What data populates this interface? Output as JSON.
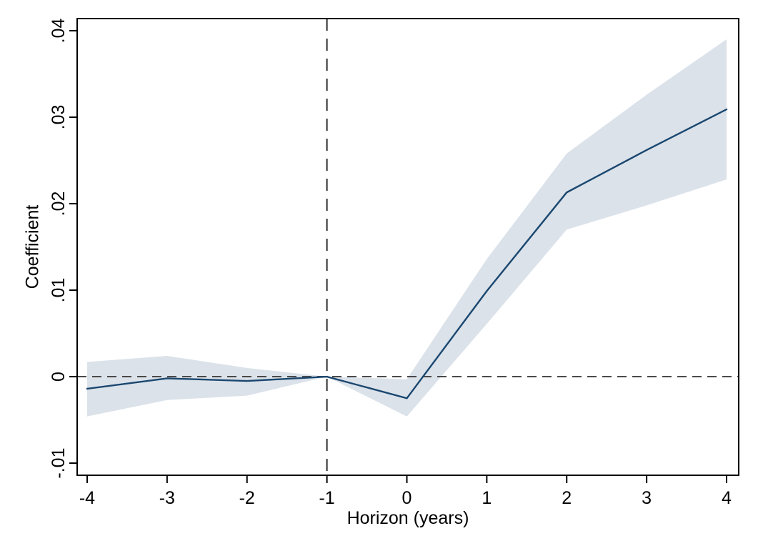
{
  "figure": {
    "background": "#ffffff",
    "border_color": "#000000",
    "text_color": "#000000"
  },
  "chart_data": {
    "type": "line",
    "title": "",
    "xlabel": "Horizon (years)",
    "ylabel": "Coefficient",
    "x": [
      -4,
      -3,
      -2,
      -1,
      0,
      1,
      2,
      3,
      4
    ],
    "series": [
      {
        "name": "coefficient",
        "values": [
          -0.0014,
          -0.0002,
          -0.0005,
          0.0,
          -0.0025,
          0.0099,
          0.0213,
          0.0262,
          0.0309
        ],
        "color": "#1a476f",
        "style": "solid"
      },
      {
        "name": "ci-lower",
        "values": [
          -0.0046,
          -0.0027,
          -0.0022,
          0.0,
          -0.0046,
          0.0061,
          0.017,
          0.0198,
          0.0228
        ],
        "color": "#dbe2ea",
        "style": "band-edge"
      },
      {
        "name": "ci-upper",
        "values": [
          0.0017,
          0.0024,
          0.001,
          0.0,
          -0.0003,
          0.0136,
          0.0258,
          0.0326,
          0.039
        ],
        "color": "#dbe2ea",
        "style": "band-edge"
      }
    ],
    "band_color": "#dbe2ea",
    "line_color": "#1a476f",
    "x_ticks": [
      -4,
      -3,
      -2,
      -1,
      0,
      1,
      2,
      3,
      4
    ],
    "x_tick_labels": [
      "-4",
      "-3",
      "-2",
      "-1",
      "0",
      "1",
      "2",
      "3",
      "4"
    ],
    "y_ticks": [
      -0.01,
      0,
      0.01,
      0.02,
      0.03,
      0.04
    ],
    "y_tick_labels": [
      "-.01",
      "0",
      ".01",
      ".02",
      ".03",
      ".04"
    ],
    "xlim": [
      -4.125,
      4.152
    ],
    "ylim": [
      -0.0114,
      0.0414
    ],
    "reference_lines": {
      "horizontal_y": 0,
      "horizontal_color": "#4a4a4a",
      "vertical_x": -1,
      "vertical_color": "#2b2b2b"
    },
    "grid": false,
    "legend_position": "none"
  }
}
